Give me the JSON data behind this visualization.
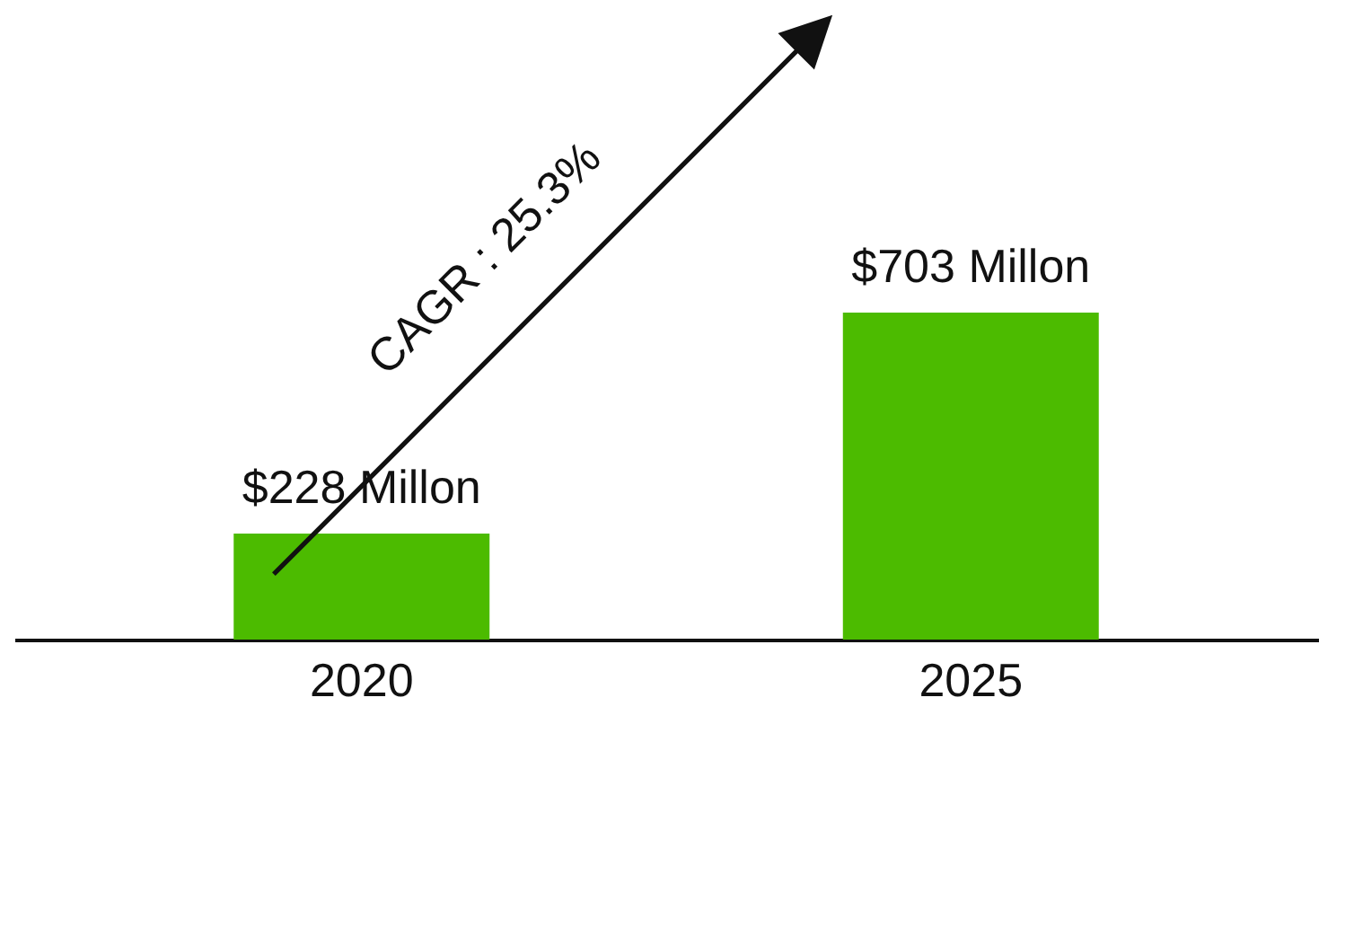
{
  "chart_data": {
    "type": "bar",
    "categories": [
      "2020",
      "2025"
    ],
    "values": [
      228,
      703
    ],
    "value_labels": [
      "$228 Millon",
      "$703 Millon"
    ],
    "color": "#4cbb00",
    "annotations": [
      "CAGR : 25.3%"
    ],
    "grid": false
  }
}
